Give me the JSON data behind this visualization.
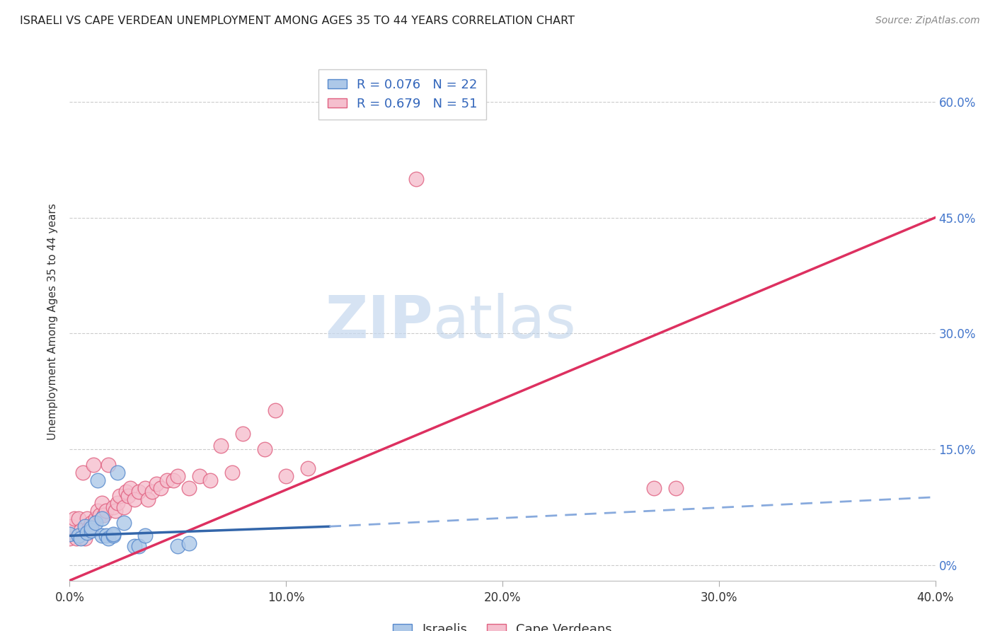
{
  "title": "ISRAELI VS CAPE VERDEAN UNEMPLOYMENT AMONG AGES 35 TO 44 YEARS CORRELATION CHART",
  "source": "Source: ZipAtlas.com",
  "ylabel": "Unemployment Among Ages 35 to 44 years",
  "xlim": [
    0.0,
    0.4
  ],
  "ylim": [
    -0.02,
    0.65
  ],
  "xticks": [
    0.0,
    0.1,
    0.2,
    0.3,
    0.4
  ],
  "yticks": [
    0.0,
    0.15,
    0.3,
    0.45,
    0.6
  ],
  "ytick_labels_right": [
    "0%",
    "15.0%",
    "30.0%",
    "45.0%",
    "60.0%"
  ],
  "xtick_labels": [
    "0.0%",
    "10.0%",
    "20.0%",
    "30.0%",
    "40.0%"
  ],
  "legend_r_israeli": "R = 0.076",
  "legend_n_israeli": "N = 22",
  "legend_r_cape": "R = 0.679",
  "legend_n_cape": "N = 51",
  "israeli_color": "#adc8e8",
  "israeli_edge_color": "#5588cc",
  "cape_color": "#f5bfce",
  "cape_edge_color": "#e06080",
  "trend_israeli_solid_color": "#3366aa",
  "trend_israeli_dash_color": "#88aadd",
  "trend_cape_color": "#dd3060",
  "watermark_zip_color": "#c5d8ef",
  "watermark_atlas_color": "#c0d5e8",
  "background_color": "#ffffff",
  "grid_color": "#cccccc",
  "israeli_x": [
    0.0,
    0.004,
    0.005,
    0.007,
    0.008,
    0.01,
    0.01,
    0.012,
    0.013,
    0.015,
    0.015,
    0.017,
    0.018,
    0.02,
    0.02,
    0.022,
    0.025,
    0.03,
    0.032,
    0.035,
    0.05,
    0.055
  ],
  "israeli_y": [
    0.04,
    0.038,
    0.035,
    0.05,
    0.042,
    0.045,
    0.048,
    0.055,
    0.11,
    0.038,
    0.06,
    0.038,
    0.035,
    0.038,
    0.04,
    0.12,
    0.055,
    0.025,
    0.025,
    0.038,
    0.025,
    0.028
  ],
  "cape_x": [
    0.0,
    0.001,
    0.002,
    0.003,
    0.004,
    0.005,
    0.006,
    0.007,
    0.008,
    0.009,
    0.01,
    0.01,
    0.011,
    0.012,
    0.013,
    0.014,
    0.015,
    0.016,
    0.017,
    0.018,
    0.02,
    0.021,
    0.022,
    0.023,
    0.025,
    0.026,
    0.027,
    0.028,
    0.03,
    0.032,
    0.035,
    0.036,
    0.038,
    0.04,
    0.042,
    0.045,
    0.048,
    0.05,
    0.055,
    0.06,
    0.065,
    0.07,
    0.075,
    0.08,
    0.09,
    0.095,
    0.1,
    0.11,
    0.16,
    0.27,
    0.28
  ],
  "cape_y": [
    0.035,
    0.05,
    0.06,
    0.035,
    0.06,
    0.045,
    0.12,
    0.035,
    0.06,
    0.048,
    0.05,
    0.055,
    0.13,
    0.06,
    0.07,
    0.065,
    0.08,
    0.065,
    0.07,
    0.13,
    0.075,
    0.07,
    0.08,
    0.09,
    0.075,
    0.095,
    0.09,
    0.1,
    0.085,
    0.095,
    0.1,
    0.085,
    0.095,
    0.105,
    0.1,
    0.11,
    0.11,
    0.115,
    0.1,
    0.115,
    0.11,
    0.155,
    0.12,
    0.17,
    0.15,
    0.2,
    0.115,
    0.125,
    0.5,
    0.1,
    0.1
  ],
  "trend_cape_x0": 0.0,
  "trend_cape_y0": -0.02,
  "trend_cape_x1": 0.4,
  "trend_cape_y1": 0.45,
  "trend_israeli_x0": 0.0,
  "trend_israeli_y0": 0.038,
  "trend_israeli_solid_x1": 0.12,
  "trend_israeli_solid_y1": 0.05,
  "trend_israeli_dash_x1": 0.4,
  "trend_israeli_dash_y1": 0.088
}
